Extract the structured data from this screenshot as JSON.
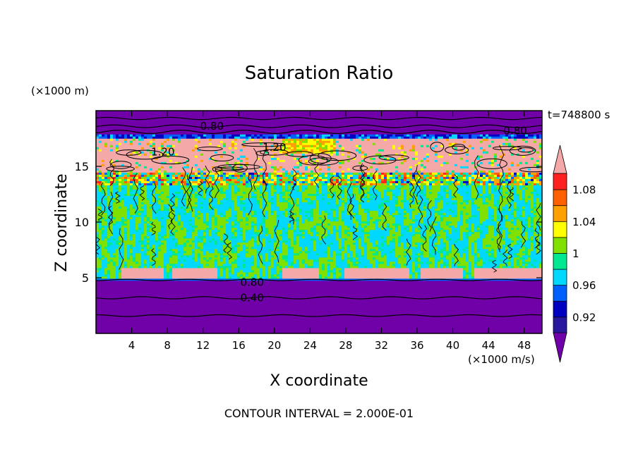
{
  "chart_data": {
    "type": "heatmap",
    "title": "Saturation Ratio",
    "xlabel": "X coordinate",
    "ylabel": "Z coordinate",
    "y_unit_label": "(×1000 m)",
    "x_unit_label": "(×1000 m/s)",
    "time_label": "t=748800 s",
    "footer": "CONTOUR INTERVAL = 2.000E-01",
    "xlim": [
      0,
      50
    ],
    "ylim": [
      0,
      20
    ],
    "x_ticks": [
      4,
      8,
      12,
      16,
      20,
      24,
      28,
      32,
      36,
      40,
      44,
      48
    ],
    "y_ticks": [
      5,
      10,
      15
    ],
    "colorbar": {
      "labels": [
        "1.08",
        "1.04",
        "1",
        "0.96",
        "0.92"
      ],
      "label_levels": [
        1.08,
        1.04,
        1.0,
        0.96,
        0.92
      ],
      "bins": [
        {
          "from": null,
          "to": 0.9,
          "color": "#7000a8"
        },
        {
          "from": 0.9,
          "to": 0.92,
          "color": "#2818a0"
        },
        {
          "from": 0.92,
          "to": 0.94,
          "color": "#0000c0"
        },
        {
          "from": 0.94,
          "to": 0.96,
          "color": "#0060ff"
        },
        {
          "from": 0.96,
          "to": 0.98,
          "color": "#00d8ff"
        },
        {
          "from": 0.98,
          "to": 1.0,
          "color": "#00e890"
        },
        {
          "from": 1.0,
          "to": 1.02,
          "color": "#80e000"
        },
        {
          "from": 1.02,
          "to": 1.04,
          "color": "#ffff00"
        },
        {
          "from": 1.04,
          "to": 1.06,
          "color": "#ffa000"
        },
        {
          "from": 1.06,
          "to": 1.08,
          "color": "#ff6000"
        },
        {
          "from": 1.08,
          "to": 1.1,
          "color": "#ff2020"
        },
        {
          "from": 1.1,
          "to": null,
          "color": "#f4a8a8"
        }
      ]
    },
    "contour_labels": [
      {
        "text": "0.80",
        "x": 13,
        "y": 18.6
      },
      {
        "text": "0.80",
        "x": 47,
        "y": 18.2
      },
      {
        "text": "1.20",
        "x": 7.5,
        "y": 16.3
      },
      {
        "text": "1.20",
        "x": 20,
        "y": 16.7
      },
      {
        "text": "0.80",
        "x": 17.5,
        "y": 4.6
      },
      {
        "text": "0.40",
        "x": 17.5,
        "y": 3.2
      }
    ],
    "layers": [
      {
        "z_range": [
          0,
          4.7
        ],
        "description": "dry lower layer",
        "color": "#7000a8"
      },
      {
        "z_range": [
          4.7,
          5.0
        ],
        "description": "sharp moist boundary",
        "color": "#0060ff"
      },
      {
        "z_range": [
          5.0,
          14.5
        ],
        "description": "near-saturated mid layer, alternating below/above 1",
        "colors": [
          "#00e890",
          "#80e000"
        ]
      },
      {
        "z_range": [
          14.5,
          18.0
        ],
        "description": "supersaturated upper layer",
        "color": "#f4a8a8"
      },
      {
        "z_range": [
          18.0,
          20
        ],
        "description": "dry top layer",
        "color": "#7000a8"
      }
    ]
  }
}
